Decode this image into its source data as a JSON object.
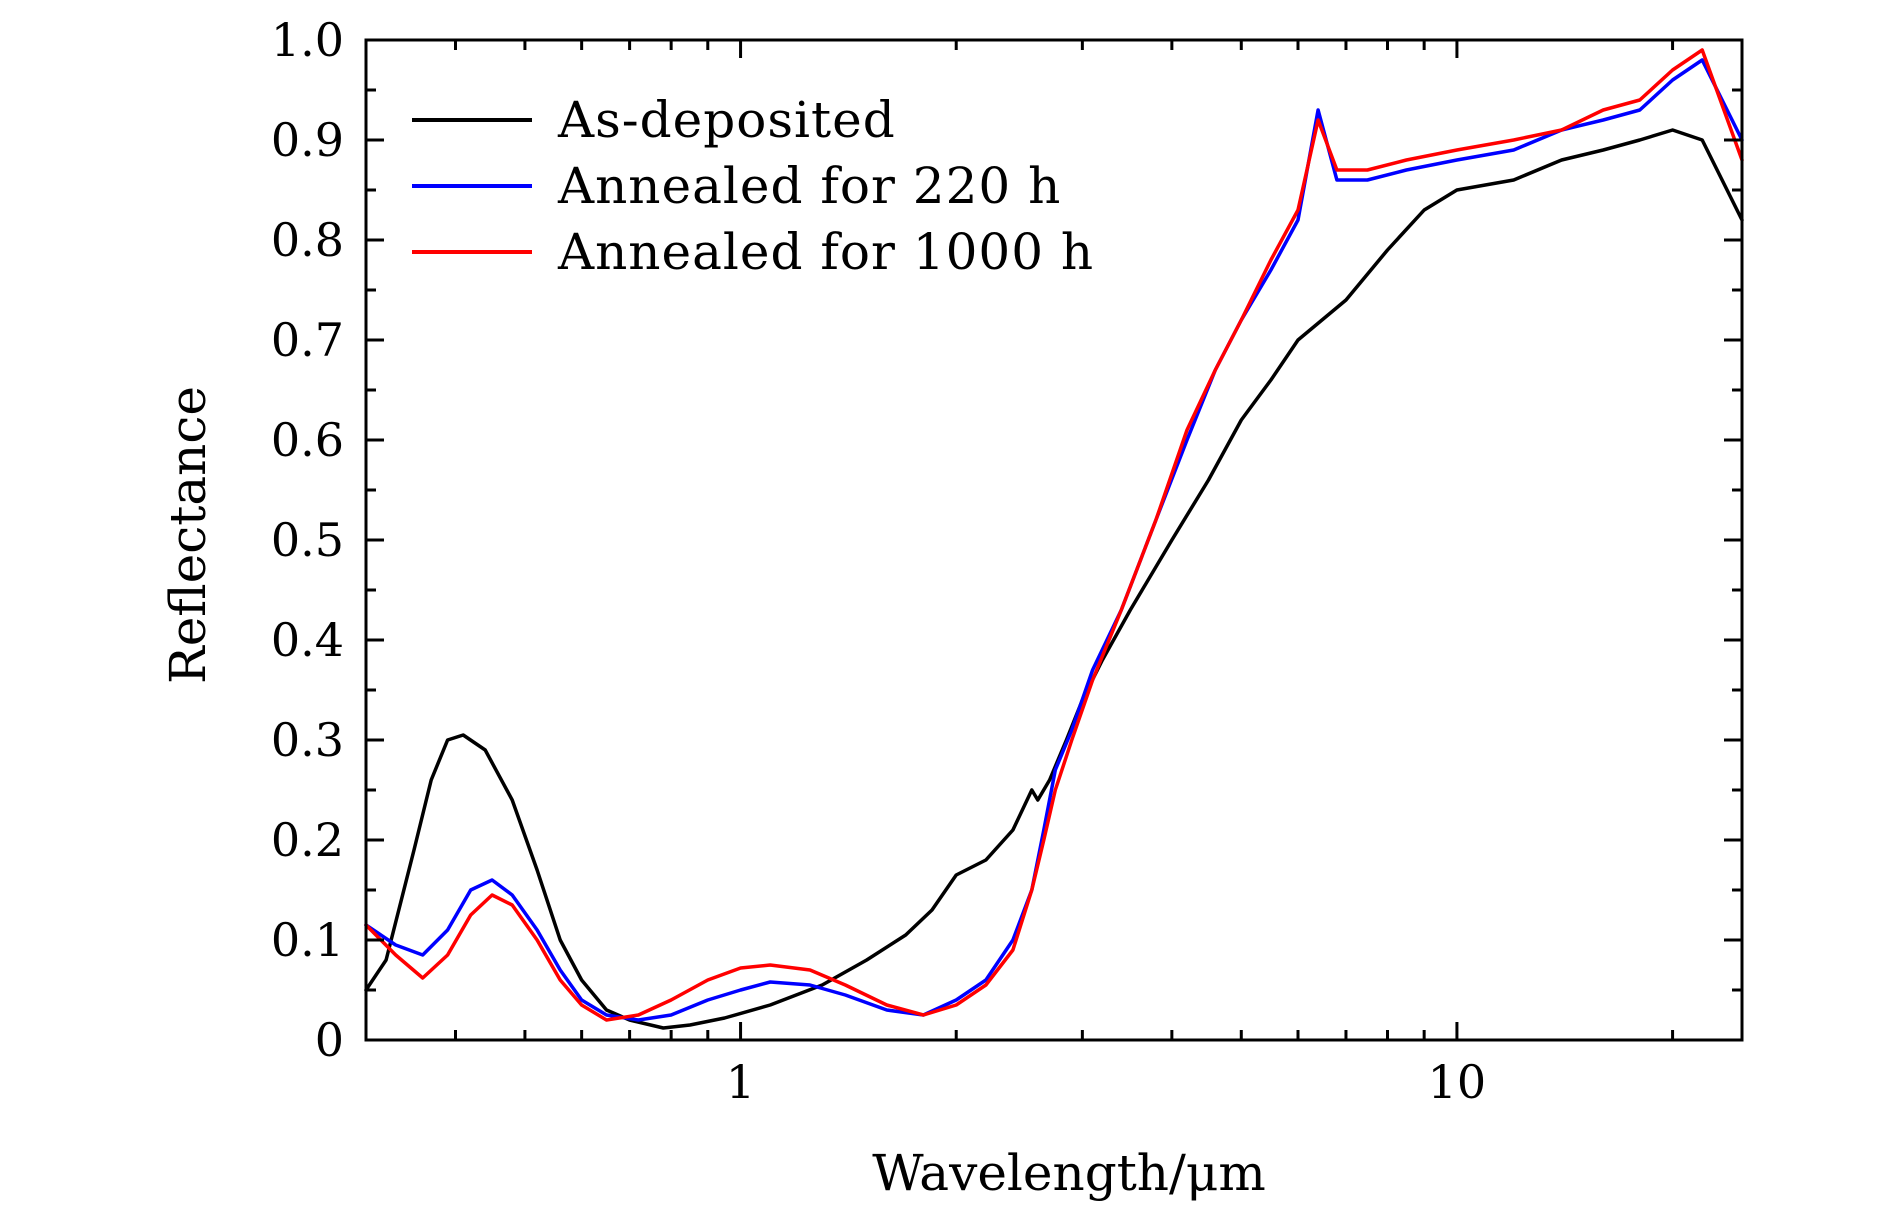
{
  "chart_data": {
    "type": "line",
    "title": "",
    "xlabel": "Wavelength/μm",
    "ylabel": "Reflectance",
    "xscale": "log",
    "xlim": [
      0.3,
      25
    ],
    "ylim": [
      0,
      1.0
    ],
    "x_ticks": [
      1,
      10
    ],
    "x_tick_labels": [
      "1",
      "10"
    ],
    "y_ticks": [
      0,
      0.1,
      0.2,
      0.3,
      0.4,
      0.5,
      0.6,
      0.7,
      0.8,
      0.9,
      1.0
    ],
    "y_tick_labels": [
      "0",
      "0.1",
      "0.2",
      "0.3",
      "0.4",
      "0.5",
      "0.6",
      "0.7",
      "0.8",
      "0.9",
      "1.0"
    ],
    "grid": false,
    "legend_position": "top-left",
    "series": [
      {
        "name": "As-deposited",
        "color": "#000000",
        "points": [
          [
            0.3,
            0.05
          ],
          [
            0.32,
            0.08
          ],
          [
            0.35,
            0.19
          ],
          [
            0.37,
            0.26
          ],
          [
            0.39,
            0.3
          ],
          [
            0.41,
            0.305
          ],
          [
            0.44,
            0.29
          ],
          [
            0.48,
            0.24
          ],
          [
            0.52,
            0.17
          ],
          [
            0.56,
            0.1
          ],
          [
            0.6,
            0.06
          ],
          [
            0.65,
            0.03
          ],
          [
            0.7,
            0.02
          ],
          [
            0.78,
            0.012
          ],
          [
            0.85,
            0.015
          ],
          [
            0.95,
            0.022
          ],
          [
            1.1,
            0.035
          ],
          [
            1.3,
            0.055
          ],
          [
            1.5,
            0.08
          ],
          [
            1.7,
            0.105
          ],
          [
            1.85,
            0.13
          ],
          [
            2.0,
            0.165
          ],
          [
            2.2,
            0.18
          ],
          [
            2.4,
            0.21
          ],
          [
            2.55,
            0.25
          ],
          [
            2.6,
            0.24
          ],
          [
            2.7,
            0.26
          ],
          [
            2.85,
            0.3
          ],
          [
            3.0,
            0.34
          ],
          [
            3.2,
            0.38
          ],
          [
            3.5,
            0.43
          ],
          [
            4.0,
            0.5
          ],
          [
            4.5,
            0.56
          ],
          [
            5.0,
            0.62
          ],
          [
            5.5,
            0.66
          ],
          [
            6.0,
            0.7
          ],
          [
            7.0,
            0.74
          ],
          [
            8.0,
            0.79
          ],
          [
            9.0,
            0.83
          ],
          [
            10.0,
            0.85
          ],
          [
            12.0,
            0.86
          ],
          [
            14.0,
            0.88
          ],
          [
            16.0,
            0.89
          ],
          [
            18.0,
            0.9
          ],
          [
            20.0,
            0.91
          ],
          [
            22.0,
            0.9
          ],
          [
            25.0,
            0.82
          ]
        ]
      },
      {
        "name": "Annealed for 220 h",
        "color": "#0000ff",
        "points": [
          [
            0.3,
            0.115
          ],
          [
            0.33,
            0.095
          ],
          [
            0.36,
            0.085
          ],
          [
            0.39,
            0.11
          ],
          [
            0.42,
            0.15
          ],
          [
            0.45,
            0.16
          ],
          [
            0.48,
            0.145
          ],
          [
            0.52,
            0.11
          ],
          [
            0.56,
            0.07
          ],
          [
            0.6,
            0.04
          ],
          [
            0.65,
            0.025
          ],
          [
            0.72,
            0.02
          ],
          [
            0.8,
            0.025
          ],
          [
            0.9,
            0.04
          ],
          [
            1.0,
            0.05
          ],
          [
            1.1,
            0.058
          ],
          [
            1.25,
            0.055
          ],
          [
            1.4,
            0.045
          ],
          [
            1.6,
            0.03
          ],
          [
            1.8,
            0.025
          ],
          [
            2.0,
            0.04
          ],
          [
            2.2,
            0.06
          ],
          [
            2.4,
            0.1
          ],
          [
            2.55,
            0.15
          ],
          [
            2.65,
            0.21
          ],
          [
            2.75,
            0.27
          ],
          [
            2.9,
            0.31
          ],
          [
            3.1,
            0.37
          ],
          [
            3.4,
            0.43
          ],
          [
            3.8,
            0.52
          ],
          [
            4.2,
            0.6
          ],
          [
            4.6,
            0.67
          ],
          [
            5.0,
            0.72
          ],
          [
            5.5,
            0.77
          ],
          [
            6.0,
            0.82
          ],
          [
            6.4,
            0.93
          ],
          [
            6.8,
            0.86
          ],
          [
            7.5,
            0.86
          ],
          [
            8.5,
            0.87
          ],
          [
            10.0,
            0.88
          ],
          [
            12.0,
            0.89
          ],
          [
            14.0,
            0.91
          ],
          [
            16.0,
            0.92
          ],
          [
            18.0,
            0.93
          ],
          [
            20.0,
            0.96
          ],
          [
            22.0,
            0.98
          ],
          [
            25.0,
            0.9
          ]
        ]
      },
      {
        "name": "Annealed for 1000 h",
        "color": "#ff0000",
        "points": [
          [
            0.3,
            0.115
          ],
          [
            0.33,
            0.085
          ],
          [
            0.36,
            0.062
          ],
          [
            0.39,
            0.085
          ],
          [
            0.42,
            0.125
          ],
          [
            0.45,
            0.145
          ],
          [
            0.48,
            0.135
          ],
          [
            0.52,
            0.1
          ],
          [
            0.56,
            0.06
          ],
          [
            0.6,
            0.035
          ],
          [
            0.65,
            0.02
          ],
          [
            0.72,
            0.025
          ],
          [
            0.8,
            0.04
          ],
          [
            0.9,
            0.06
          ],
          [
            1.0,
            0.072
          ],
          [
            1.1,
            0.075
          ],
          [
            1.25,
            0.07
          ],
          [
            1.4,
            0.055
          ],
          [
            1.6,
            0.035
          ],
          [
            1.8,
            0.025
          ],
          [
            2.0,
            0.035
          ],
          [
            2.2,
            0.055
          ],
          [
            2.4,
            0.09
          ],
          [
            2.55,
            0.15
          ],
          [
            2.65,
            0.2
          ],
          [
            2.75,
            0.25
          ],
          [
            2.9,
            0.3
          ],
          [
            3.1,
            0.36
          ],
          [
            3.4,
            0.43
          ],
          [
            3.8,
            0.52
          ],
          [
            4.2,
            0.61
          ],
          [
            4.6,
            0.67
          ],
          [
            5.0,
            0.72
          ],
          [
            5.5,
            0.78
          ],
          [
            6.0,
            0.83
          ],
          [
            6.4,
            0.92
          ],
          [
            6.8,
            0.87
          ],
          [
            7.5,
            0.87
          ],
          [
            8.5,
            0.88
          ],
          [
            10.0,
            0.89
          ],
          [
            12.0,
            0.9
          ],
          [
            14.0,
            0.91
          ],
          [
            16.0,
            0.93
          ],
          [
            18.0,
            0.94
          ],
          [
            20.0,
            0.97
          ],
          [
            22.0,
            0.99
          ],
          [
            25.0,
            0.88
          ]
        ]
      }
    ]
  }
}
